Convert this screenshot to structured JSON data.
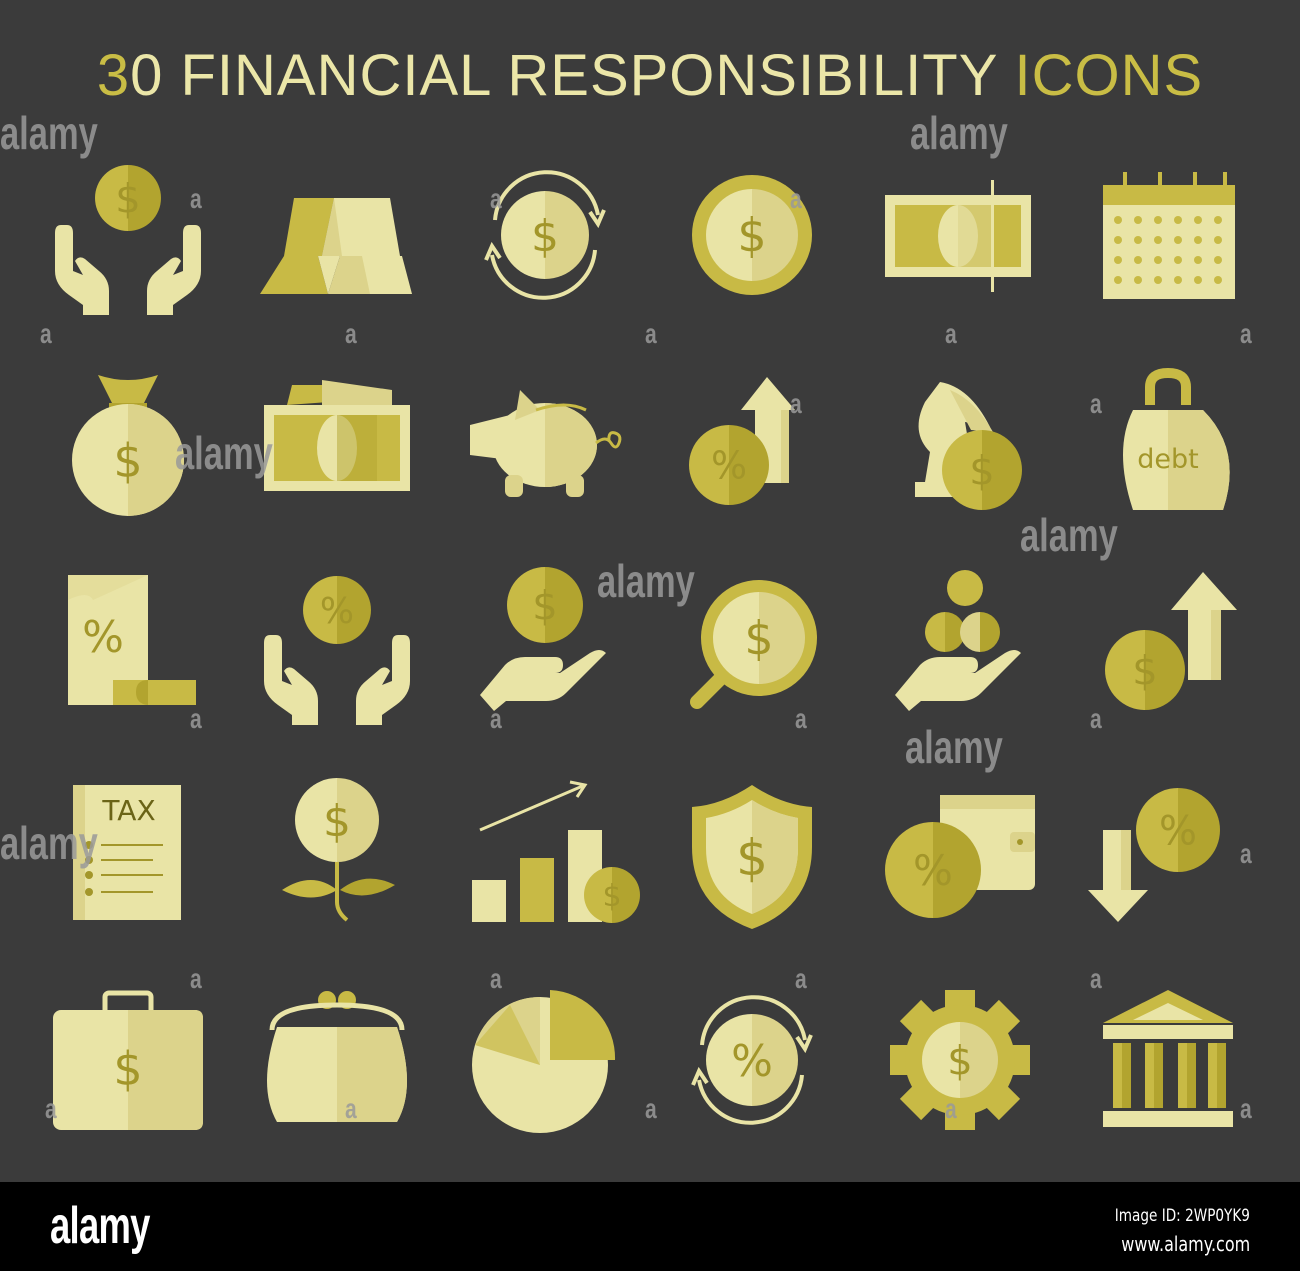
{
  "title": {
    "prefix": "3",
    "main": "0 FINANCIAL RESPONSIBILITY ",
    "accent": "ICONS"
  },
  "colors": {
    "background": "#3b3b3b",
    "light": "#e9e4a6",
    "mid": "#dcd38b",
    "gold": "#c8ba45",
    "dark_gold": "#b2a42f",
    "symbol": "#a3962a"
  },
  "icons": [
    {
      "name": "hands-holding-coin-icon",
      "text": "$"
    },
    {
      "name": "gold-bars-icon",
      "text": ""
    },
    {
      "name": "coin-exchange-icon",
      "text": "$"
    },
    {
      "name": "dollar-coin-icon",
      "text": "$"
    },
    {
      "name": "banknote-icon",
      "text": ""
    },
    {
      "name": "calendar-icon",
      "text": ""
    },
    {
      "name": "money-bag-icon",
      "text": "$"
    },
    {
      "name": "banknotes-stack-icon",
      "text": ""
    },
    {
      "name": "piggy-bank-icon",
      "text": ""
    },
    {
      "name": "percent-up-arrow-icon",
      "text": "%"
    },
    {
      "name": "chess-knight-coin-icon",
      "text": "$"
    },
    {
      "name": "debt-weight-icon",
      "text": "debt"
    },
    {
      "name": "percent-receipt-icon",
      "text": "%"
    },
    {
      "name": "hands-holding-percent-icon",
      "text": "%"
    },
    {
      "name": "hand-coin-icon",
      "text": "$"
    },
    {
      "name": "magnifier-dollar-icon",
      "text": "$"
    },
    {
      "name": "hand-coins-icon",
      "text": ""
    },
    {
      "name": "dollar-up-arrow-icon",
      "text": "$"
    },
    {
      "name": "tax-document-icon",
      "text": "TAX"
    },
    {
      "name": "money-plant-icon",
      "text": "$"
    },
    {
      "name": "growth-chart-coin-icon",
      "text": "$"
    },
    {
      "name": "shield-dollar-icon",
      "text": "$"
    },
    {
      "name": "wallet-percent-icon",
      "text": "%"
    },
    {
      "name": "percent-down-arrow-icon",
      "text": "%"
    },
    {
      "name": "briefcase-dollar-icon",
      "text": "$"
    },
    {
      "name": "purse-icon",
      "text": ""
    },
    {
      "name": "pie-chart-icon",
      "text": ""
    },
    {
      "name": "percent-exchange-icon",
      "text": "%"
    },
    {
      "name": "gear-dollar-icon",
      "text": "$"
    },
    {
      "name": "bank-building-icon",
      "text": ""
    }
  ],
  "watermark": {
    "text": "alamy",
    "letter": "a"
  },
  "footer": {
    "logo": "alamy",
    "image_id": "Image ID: 2WP0YK9",
    "url": "www.alamy.com"
  }
}
